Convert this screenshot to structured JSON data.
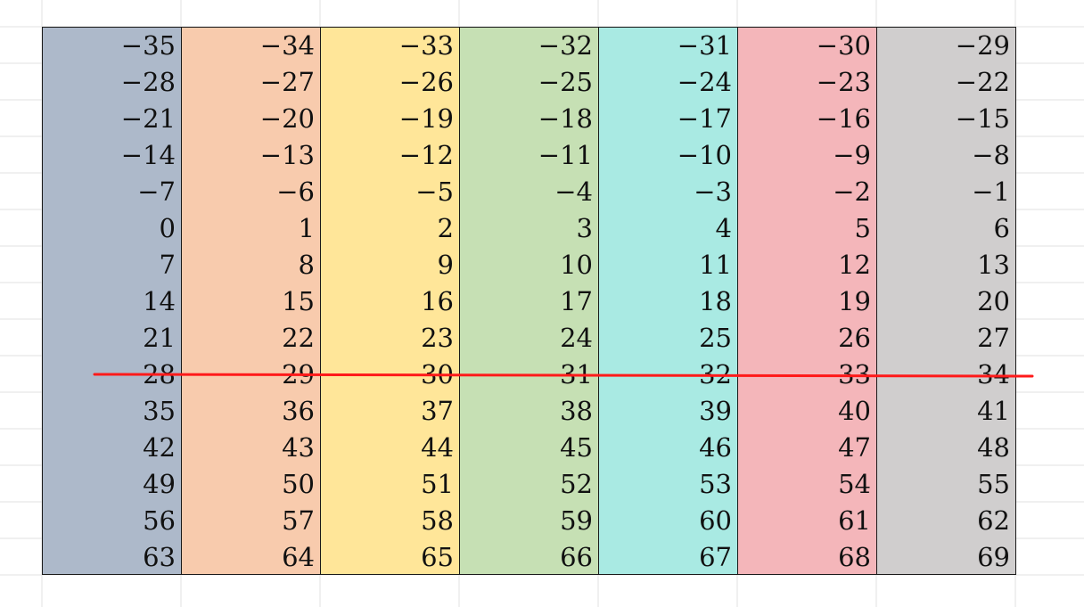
{
  "spreadsheet": {
    "columns": [
      {
        "color": "#ADB9CA",
        "values": [
          "−35",
          "−28",
          "−21",
          "−14",
          "−7",
          "0",
          "7",
          "14",
          "21",
          "28",
          "35",
          "42",
          "49",
          "56",
          "63"
        ]
      },
      {
        "color": "#F8CBAD",
        "values": [
          "−34",
          "−27",
          "−20",
          "−13",
          "−6",
          "1",
          "8",
          "15",
          "22",
          "29",
          "36",
          "43",
          "50",
          "57",
          "64"
        ]
      },
      {
        "color": "#FFE699",
        "values": [
          "−33",
          "−26",
          "−19",
          "−12",
          "−5",
          "2",
          "9",
          "16",
          "23",
          "30",
          "37",
          "44",
          "51",
          "58",
          "65"
        ]
      },
      {
        "color": "#C6E0B4",
        "values": [
          "−32",
          "−25",
          "−18",
          "−11",
          "−4",
          "3",
          "10",
          "17",
          "24",
          "31",
          "38",
          "45",
          "52",
          "59",
          "66"
        ]
      },
      {
        "color": "#A9EAE3",
        "values": [
          "−31",
          "−24",
          "−17",
          "−10",
          "−3",
          "4",
          "11",
          "18",
          "25",
          "32",
          "39",
          "46",
          "53",
          "60",
          "67"
        ]
      },
      {
        "color": "#F4B6BA",
        "values": [
          "−30",
          "−23",
          "−16",
          "−9",
          "−2",
          "5",
          "12",
          "19",
          "26",
          "33",
          "40",
          "47",
          "54",
          "61",
          "68"
        ]
      },
      {
        "color": "#D0CECE",
        "values": [
          "−29",
          "−22",
          "−15",
          "−8",
          "−1",
          "6",
          "13",
          "20",
          "27",
          "34",
          "41",
          "48",
          "55",
          "62",
          "69"
        ]
      }
    ],
    "strike_line_color": "#FF1A1A",
    "gridline_color": "#E2E2E2"
  }
}
